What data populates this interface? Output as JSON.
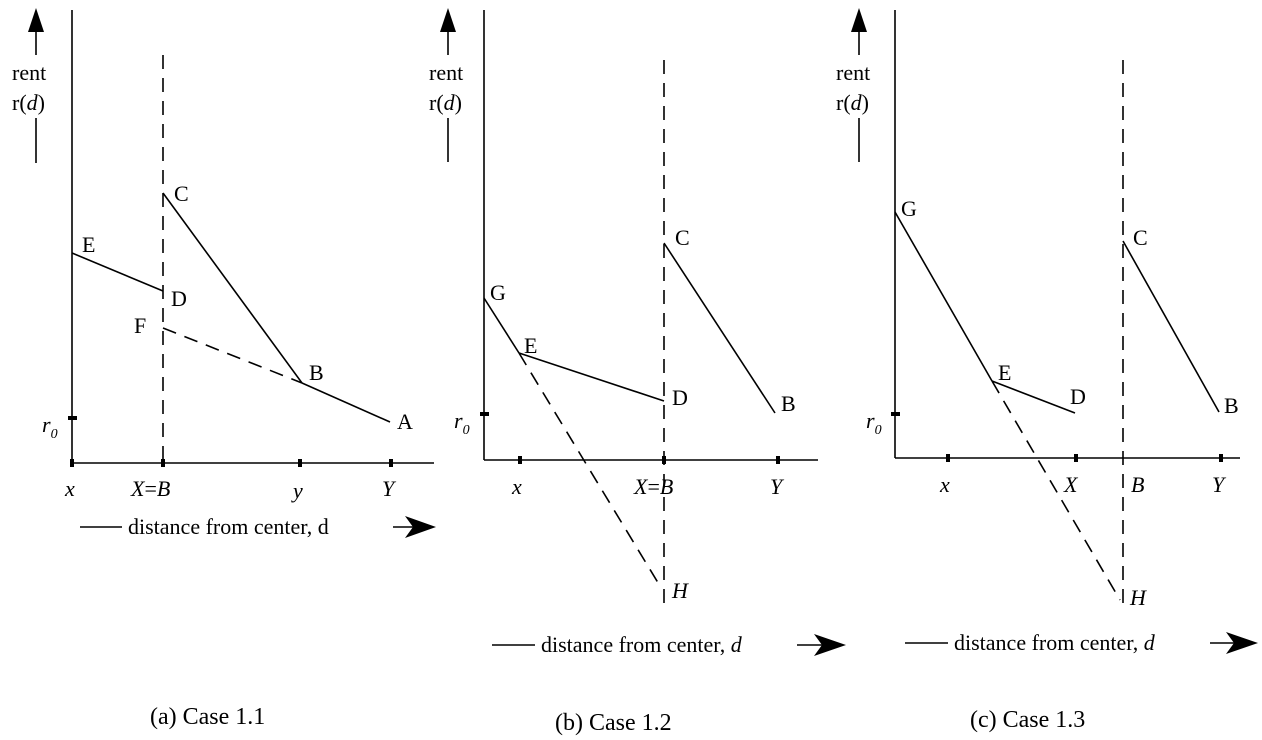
{
  "panels": [
    {
      "rent_label": "rent",
      "rd_label": {
        "r": "r(",
        "d": "d",
        "close": ")"
      },
      "r0": {
        "r": "r",
        "sub": "0"
      },
      "points": {
        "E": "E",
        "C": "C",
        "D": "D",
        "F": "F",
        "B": "B",
        "A": "A"
      },
      "ticks": {
        "x": "x",
        "XB": {
          "X": "X",
          "eq": "=",
          "B": "B"
        },
        "y": "y",
        "Y": "Y"
      },
      "axis_label": {
        "text": "distance from center, d"
      },
      "caption": "(a)  Case 1.1"
    },
    {
      "rent_label": "rent",
      "rd_label": {
        "r": "r(",
        "d": "d",
        "close": ")"
      },
      "r0": {
        "r": "r",
        "sub": "0"
      },
      "points": {
        "G": "G",
        "E": "E",
        "C": "C",
        "D": "D",
        "B": "B",
        "H": "H"
      },
      "ticks": {
        "x": "x",
        "XB": {
          "X": "X",
          "eq": "=",
          "B": "B"
        },
        "Y": "Y"
      },
      "axis_label": {
        "text": "distance from center, ",
        "d": "d"
      },
      "caption": "(b)  Case 1.2"
    },
    {
      "rent_label": "rent",
      "rd_label": {
        "r": "r(",
        "d": "d",
        "close": ")"
      },
      "r0": {
        "r": "r",
        "sub": "0"
      },
      "points": {
        "G": "G",
        "E": "E",
        "D": "D",
        "C": "C",
        "B": "B",
        "H": "H"
      },
      "ticks": {
        "x": "x",
        "X": "X",
        "B": "B",
        "Y": "Y"
      },
      "axis_label": {
        "text": "distance from center, ",
        "d": "d"
      },
      "caption": "(c)  Case 1.3"
    }
  ]
}
